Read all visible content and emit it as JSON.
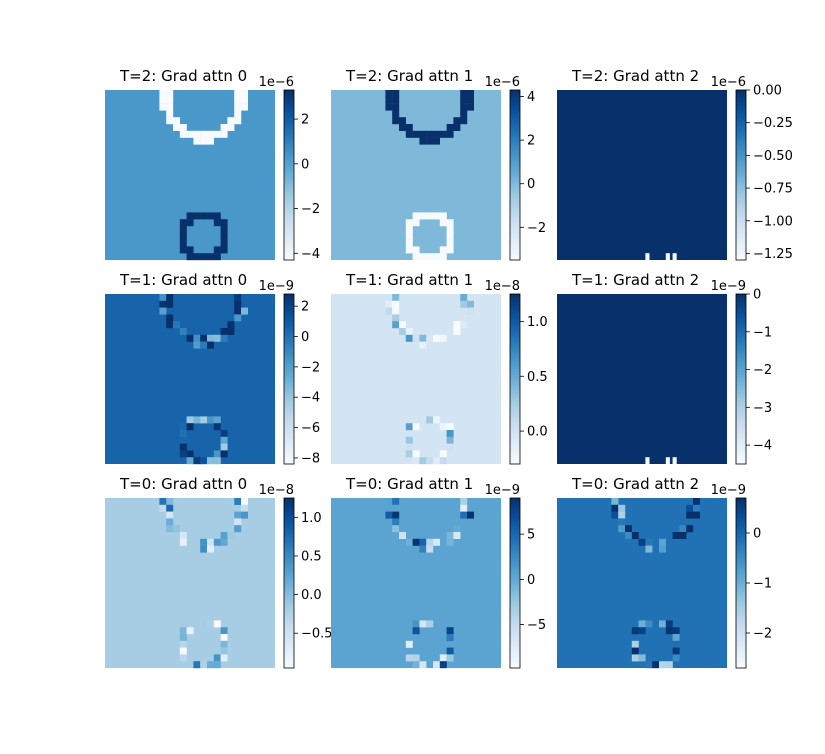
{
  "colormap": "Blues",
  "cmap_stops": [
    "#f7fbff",
    "#deebf7",
    "#c6dbef",
    "#9ecae1",
    "#6baed6",
    "#4292c6",
    "#2171b5",
    "#08519c",
    "#08306b"
  ],
  "chart_data": [
    {
      "type": "heatmap",
      "title": "T=2: Grad attn 0",
      "exponent": "1e−6",
      "ticks": [
        "2",
        "0",
        "−2",
        "−4"
      ],
      "range": [
        -4.3,
        3.3
      ],
      "level": 0.6,
      "overlays": [
        {
          "shape": "ring",
          "where": "top",
          "tone": 0.0
        },
        {
          "shape": "ring",
          "where": "bottom",
          "tone": 1.0
        }
      ]
    },
    {
      "type": "heatmap",
      "title": "T=2: Grad attn 1",
      "exponent": "1e−6",
      "ticks": [
        "4",
        "2",
        "0",
        "−2"
      ],
      "range": [
        -3.5,
        4.3
      ],
      "level": 0.45,
      "overlays": [
        {
          "shape": "ring",
          "where": "top",
          "tone": 1.0
        },
        {
          "shape": "ring",
          "where": "bottom",
          "tone": 0.0
        }
      ]
    },
    {
      "type": "heatmap",
      "title": "T=2: Grad attn 2",
      "exponent": "1e−6",
      "ticks": [
        "0.00",
        "−0.25",
        "−0.50",
        "−0.75",
        "−1.00",
        "−1.25"
      ],
      "range": [
        -1.3,
        0.0
      ],
      "level": 1.0,
      "overlays": [
        {
          "shape": "dots",
          "where": "bottom",
          "tone": 0.0
        }
      ]
    },
    {
      "type": "heatmap",
      "title": "T=1: Grad attn 0",
      "exponent": "1e−9",
      "ticks": [
        "2",
        "0",
        "−2",
        "−4",
        "−6",
        "−8"
      ],
      "range": [
        -8.4,
        2.8
      ],
      "level": 0.8,
      "overlays": [
        {
          "shape": "sparse-ring",
          "where": "top"
        },
        {
          "shape": "sparse-ring",
          "where": "bottom"
        }
      ]
    },
    {
      "type": "heatmap",
      "title": "T=1: Grad attn 1",
      "exponent": "1e−8",
      "ticks": [
        "1.0",
        "0.5",
        "0.0"
      ],
      "range": [
        -0.3,
        1.25
      ],
      "level": 0.18,
      "overlays": [
        {
          "shape": "sparse-ring",
          "where": "top"
        },
        {
          "shape": "sparse-ring",
          "where": "bottom"
        }
      ]
    },
    {
      "type": "heatmap",
      "title": "T=1: Grad attn 2",
      "exponent": "1e−9",
      "ticks": [
        "0",
        "−1",
        "−2",
        "−3",
        "−4"
      ],
      "range": [
        -4.5,
        0.0
      ],
      "level": 1.0,
      "overlays": [
        {
          "shape": "dots",
          "where": "bottom",
          "tone": 0.0
        }
      ]
    },
    {
      "type": "heatmap",
      "title": "T=0: Grad attn 0",
      "exponent": "1e−8",
      "ticks": [
        "1.0",
        "0.5",
        "0.0",
        "−0.5"
      ],
      "range": [
        -0.95,
        1.25
      ],
      "level": 0.35,
      "overlays": [
        {
          "shape": "sparse-ring",
          "where": "top"
        },
        {
          "shape": "sparse-ring",
          "where": "bottom"
        }
      ]
    },
    {
      "type": "heatmap",
      "title": "T=0: Grad attn 1",
      "exponent": "1e−9",
      "ticks": [
        "5",
        "0",
        "−5"
      ],
      "range": [
        -9.8,
        9.0
      ],
      "level": 0.55,
      "overlays": [
        {
          "shape": "sparse-ring",
          "where": "top"
        },
        {
          "shape": "sparse-ring",
          "where": "bottom"
        }
      ]
    },
    {
      "type": "heatmap",
      "title": "T=0: Grad attn 2",
      "exponent": "1e−9",
      "ticks": [
        "0",
        "−1",
        "−2"
      ],
      "range": [
        -2.7,
        0.7
      ],
      "level": 0.75,
      "overlays": [
        {
          "shape": "sparse-ring",
          "where": "top"
        },
        {
          "shape": "sparse-ring",
          "where": "bottom"
        }
      ]
    }
  ]
}
